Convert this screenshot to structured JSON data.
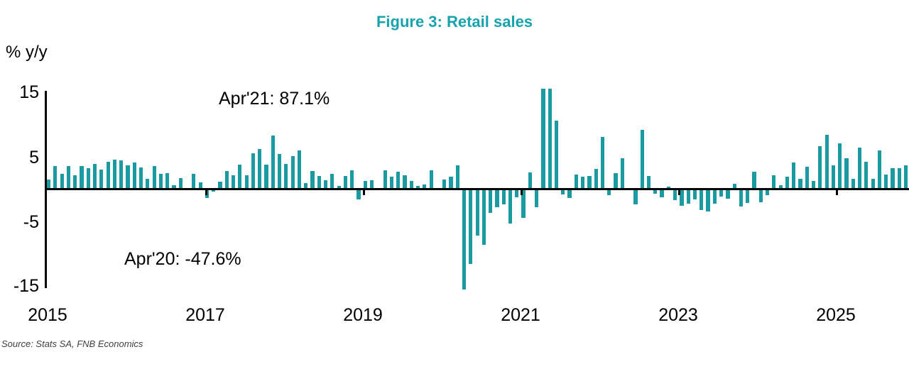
{
  "header": {
    "title": "Figure 3: Retail sales"
  },
  "footer": {
    "source": "Source: Stats SA, FNB Economics"
  },
  "colors": {
    "bar": "#1b9aa1",
    "title": "#16a3ae",
    "axis": "#000000",
    "source_text": "#3f3f3f",
    "background": "#ffffff"
  },
  "chart_data": {
    "type": "bar",
    "title": "Figure 3: Retail sales",
    "ylabel": "% y/y",
    "frequency": "monthly",
    "start_month": "2015-01",
    "end_month": "2025-11",
    "ylim": [
      -15,
      15
    ],
    "clip_at": 15.5,
    "grid": false,
    "legend_position": "none",
    "yticks": [
      15,
      5,
      -5,
      -15
    ],
    "ytick_labels": [
      "15",
      "5",
      "-5",
      "-15"
    ],
    "xticks": [
      "2015",
      "2017",
      "2019",
      "2021",
      "2023",
      "2025"
    ],
    "annotations": [
      {
        "label": "Apr'21: 87.1%",
        "month": "2021-04",
        "value": 87.1
      },
      {
        "label": "Apr'20: -47.6%",
        "month": "2020-04",
        "value": -47.6
      }
    ],
    "series": [
      {
        "name": "Retail sales, % y/y",
        "values": [
          1.5,
          3.5,
          2.4,
          3.6,
          2.1,
          3.5,
          3.2,
          3.9,
          3.0,
          4.2,
          4.5,
          4.4,
          3.7,
          4.1,
          3.3,
          1.6,
          3.6,
          2.3,
          2.5,
          0.6,
          1.7,
          0.2,
          2.4,
          1.0,
          -1.4,
          -0.4,
          1.2,
          2.8,
          2.1,
          3.8,
          2.1,
          5.5,
          6.2,
          3.8,
          8.2,
          5.4,
          3.9,
          5.1,
          5.9,
          0.9,
          2.8,
          2.0,
          1.4,
          2.3,
          0.5,
          2.0,
          2.9,
          -1.6,
          1.3,
          1.4,
          0.2,
          2.9,
          1.9,
          2.7,
          2.1,
          1.3,
          0.5,
          0.7,
          2.9,
          0.2,
          1.5,
          1.9,
          3.7,
          -47.6,
          -11.5,
          -7.2,
          -8.6,
          -3.7,
          -2.8,
          -2.3,
          -5.3,
          -1.3,
          -4.4,
          2.6,
          -2.8,
          87.1,
          15.4,
          10.5,
          -0.8,
          -1.4,
          2.2,
          1.9,
          2.0,
          3.1,
          8.0,
          -0.9,
          2.5,
          4.8,
          0.1,
          -2.3,
          9.1,
          2.0,
          -0.7,
          -1.3,
          0.4,
          -1.7,
          -2.6,
          -2.2,
          -1.6,
          -3.2,
          -3.4,
          -2.2,
          -1.2,
          -1.5,
          0.8,
          -2.7,
          -2.1,
          2.7,
          -2.0,
          -0.9,
          2.1,
          0.6,
          1.9,
          4.1,
          1.6,
          3.4,
          1.3,
          6.6,
          8.3,
          3.7,
          7.0,
          4.8,
          1.6,
          6.4,
          4.2,
          1.6,
          5.9,
          2.2,
          3.2,
          3.2,
          3.7
        ]
      }
    ]
  }
}
